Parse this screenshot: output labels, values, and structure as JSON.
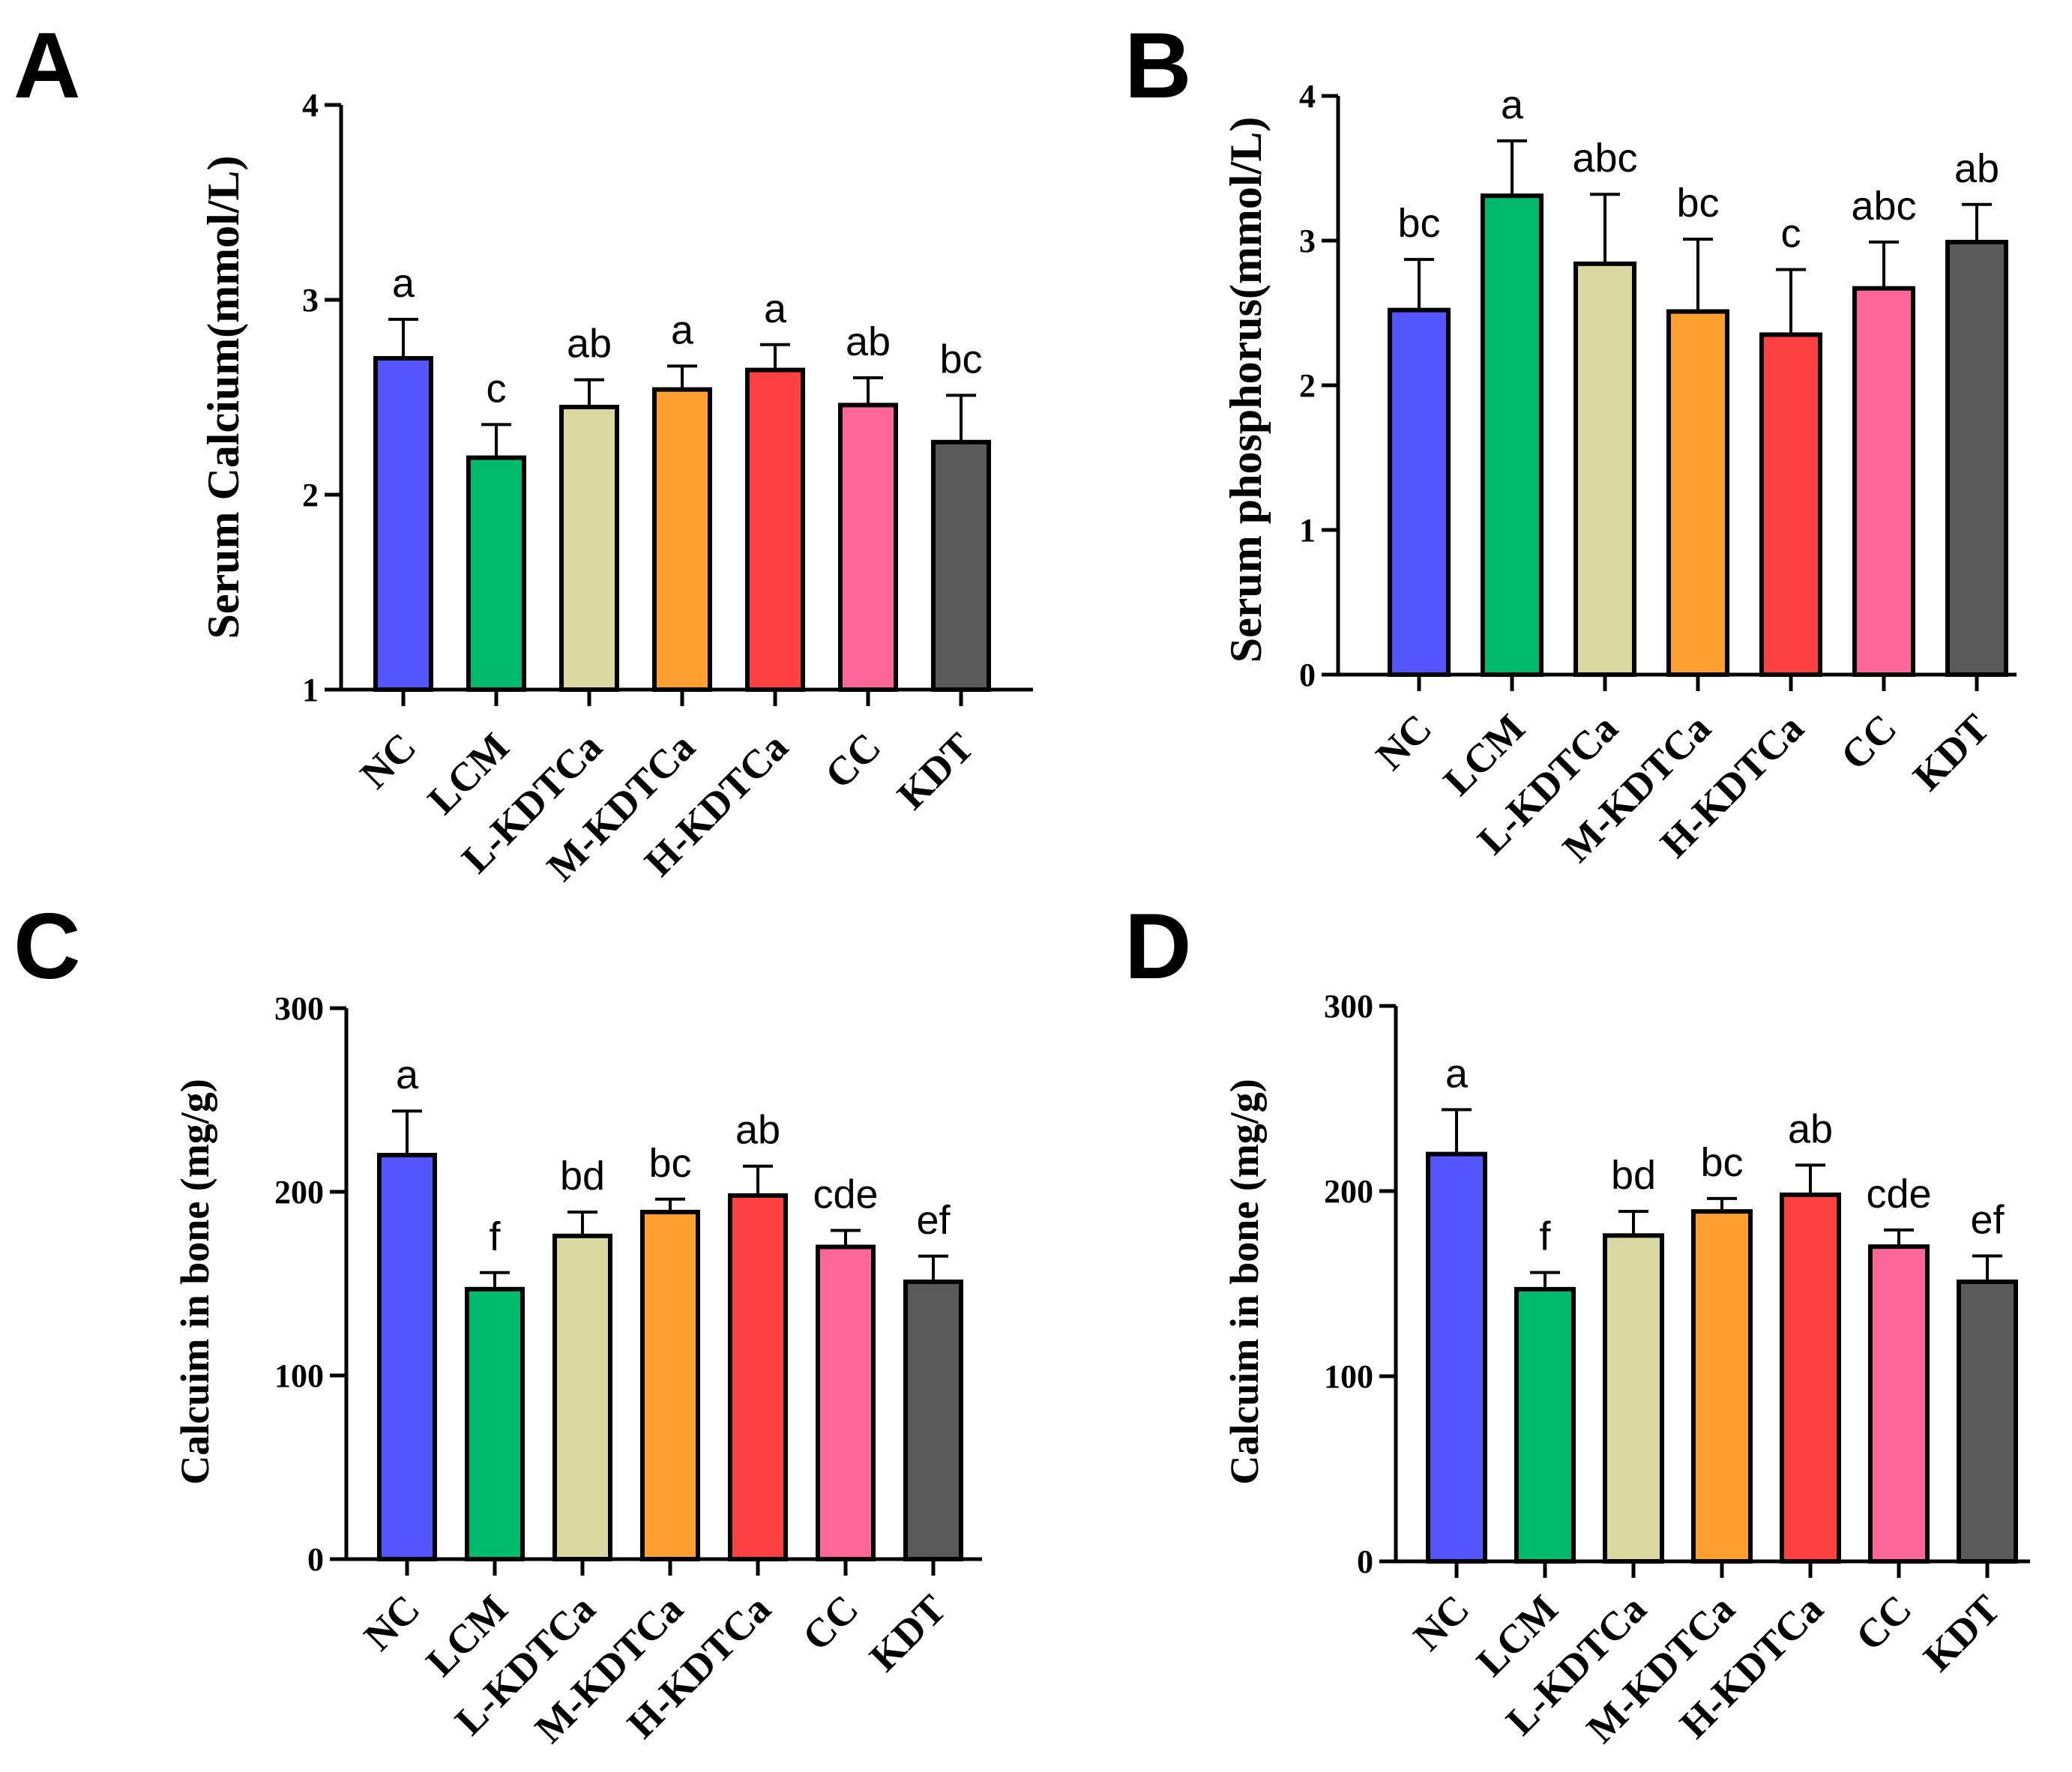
{
  "colors": {
    "NC": "#5555ff",
    "LCM": "#00bb6b",
    "L-KDTCa": "#d8d8a0",
    "M-KDTCa": "#ff9f30",
    "H-KDTCa": "#ff4040",
    "CC": "#ff6699",
    "KDT": "#5a5a5a"
  },
  "chart_data": [
    {
      "panel": "A",
      "type": "bar",
      "categories": [
        "NC",
        "LCM",
        "L-KDTCa",
        "M-KDTCa",
        "H-KDTCa",
        "CC",
        "KDT"
      ],
      "values": [
        2.7,
        2.19,
        2.45,
        2.54,
        2.64,
        2.46,
        2.27
      ],
      "errors": [
        0.2,
        0.17,
        0.14,
        0.12,
        0.13,
        0.14,
        0.24
      ],
      "significance": [
        "a",
        "c",
        "ab",
        "a",
        "a",
        "ab",
        "bc"
      ],
      "ylabel": "Serum Calcium(mmol/L)",
      "ylim": [
        1,
        4
      ],
      "yticks": [
        "1",
        "2",
        "3",
        "4"
      ]
    },
    {
      "panel": "B",
      "type": "bar",
      "categories": [
        "NC",
        "LCM",
        "L-KDTCa",
        "M-KDTCa",
        "H-KDTCa",
        "CC",
        "KDT"
      ],
      "values": [
        2.52,
        3.31,
        2.84,
        2.51,
        2.35,
        2.67,
        2.99
      ],
      "errors": [
        0.35,
        0.38,
        0.48,
        0.5,
        0.45,
        0.32,
        0.26
      ],
      "significance": [
        "bc",
        "a",
        "abc",
        "bc",
        "c",
        "abc",
        "ab"
      ],
      "ylabel": "Serum phosphorus(mmol/L)",
      "ylim": [
        0,
        4
      ],
      "yticks": [
        "0",
        "1",
        "2",
        "3",
        "4"
      ]
    },
    {
      "panel": "C",
      "type": "bar",
      "categories": [
        "NC",
        "LCM",
        "L-KDTCa",
        "M-KDTCa",
        "H-KDTCa",
        "CC",
        "KDT"
      ],
      "values": [
        220,
        147,
        176,
        189,
        198,
        170,
        151
      ],
      "errors": [
        24,
        9,
        13,
        7,
        16,
        9,
        14
      ],
      "significance": [
        "a",
        "f",
        "bd",
        "bc",
        "ab",
        "cde",
        "ef"
      ],
      "ylabel": "Calcuim in bone (mg/g)",
      "ylim": [
        0,
        300
      ],
      "yticks": [
        "0",
        "100",
        "200",
        "300"
      ]
    },
    {
      "panel": "D",
      "type": "bar",
      "categories": [
        "NC",
        "LCM",
        "L-KDTCa",
        "M-KDTCa",
        "H-KDTCa",
        "CC",
        "KDT"
      ],
      "values": [
        220,
        147,
        176,
        189,
        198,
        170,
        151
      ],
      "errors": [
        24,
        9,
        13,
        7,
        16,
        9,
        14
      ],
      "significance": [
        "a",
        "f",
        "bd",
        "bc",
        "ab",
        "cde",
        "ef"
      ],
      "ylabel": "Calcuim in bone (mg/g)",
      "ylim": [
        0,
        300
      ],
      "yticks": [
        "0",
        "100",
        "200",
        "300"
      ]
    }
  ]
}
